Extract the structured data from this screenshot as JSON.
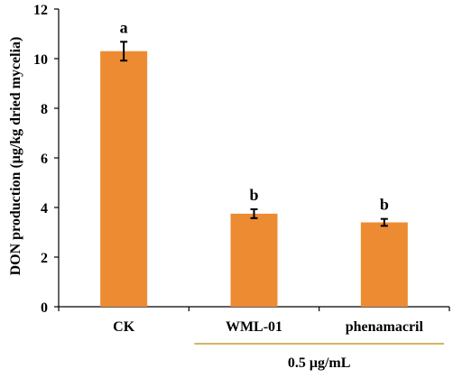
{
  "chart_data": {
    "type": "bar",
    "categories": [
      "CK",
      "WML-01",
      "phenamacril"
    ],
    "values": [
      10.3,
      3.75,
      3.4
    ],
    "errors": [
      0.38,
      0.18,
      0.14
    ],
    "significance": [
      "a",
      "b",
      "b"
    ],
    "ylabel": "DON production (μg/kg dried mycelia)",
    "ylim": [
      0,
      12
    ],
    "yticks": [
      0,
      2,
      4,
      6,
      8,
      10,
      12
    ],
    "group_label": "0.5 μg/mL",
    "group_categories": [
      "WML-01",
      "phenamacril"
    ],
    "bar_color": "#ED8B32",
    "group_line_color": "#C89A2E",
    "grid": false
  }
}
